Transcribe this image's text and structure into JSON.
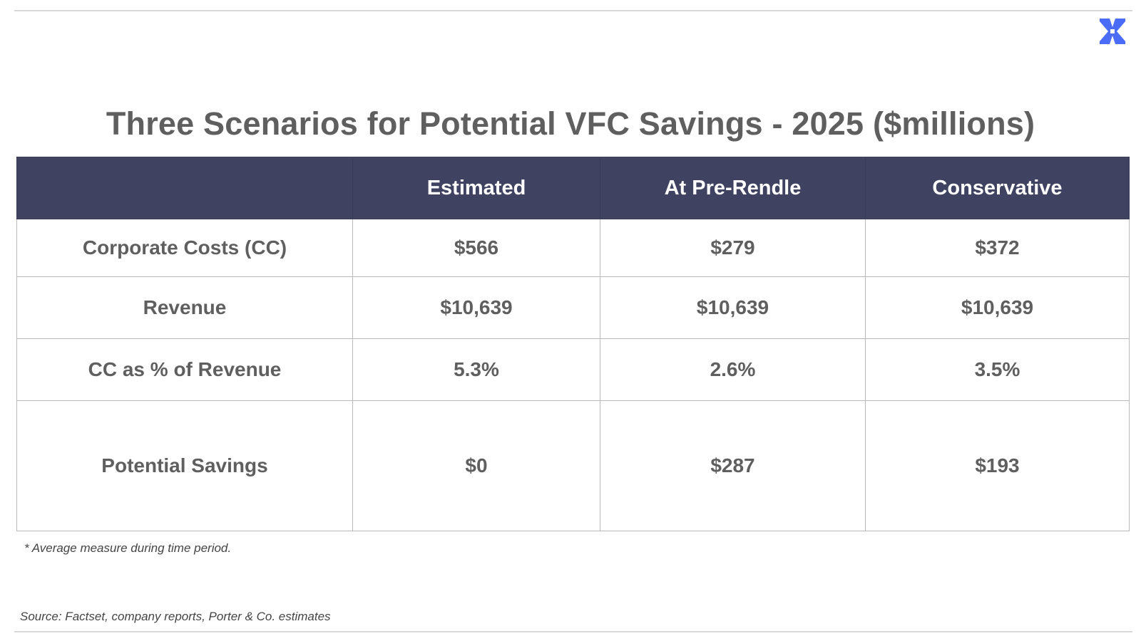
{
  "title": "Three Scenarios for Potential VFC Savings - 2025 ($millions)",
  "logo": {
    "icon": "x-logo-icon",
    "color": "#4a6cf7"
  },
  "table": {
    "header_bg": "#3f4260",
    "columns": [
      "",
      "Estimated",
      "At Pre-Rendle",
      "Conservative"
    ],
    "rows": [
      {
        "label": "Corporate Costs (CC)",
        "values": [
          "$566",
          "$279",
          "$372"
        ]
      },
      {
        "label": "Revenue",
        "values": [
          "$10,639",
          "$10,639",
          "$10,639"
        ]
      },
      {
        "label": "CC as % of Revenue",
        "values": [
          "5.3%",
          "2.6%",
          "3.5%"
        ]
      },
      {
        "label": "Potential Savings",
        "values": [
          "$0",
          "$287",
          "$193"
        ]
      }
    ]
  },
  "footnote": "* Average measure during time period.",
  "source": "Source: Factset, company reports, Porter & Co. estimates"
}
